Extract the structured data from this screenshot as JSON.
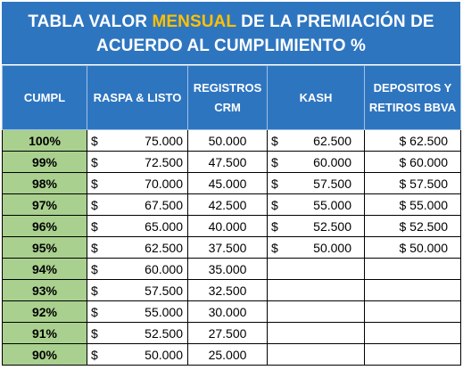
{
  "title": {
    "part1": "TABLA VALOR ",
    "highlight": "MENSUAL",
    "part2": " DE LA PREMIACIÓN DE ACUERDO AL CUMPLIMIENTO %"
  },
  "headers": {
    "cumpl": "CUMPL",
    "raspa": "RASPA & LISTO",
    "registros": "REGISTROS CRM",
    "kash": "KASH",
    "depositos": "DEPOSITOS Y RETIROS BBVA"
  },
  "currency_symbol": "$",
  "rows": [
    {
      "cumpl": "100%",
      "raspa": "75.000",
      "registros": "50.000",
      "kash": "62.500",
      "depositos": "$ 62.500"
    },
    {
      "cumpl": "99%",
      "raspa": "72.500",
      "registros": "47.500",
      "kash": "60.000",
      "depositos": "$ 60.000"
    },
    {
      "cumpl": "98%",
      "raspa": "70.000",
      "registros": "45.000",
      "kash": "57.500",
      "depositos": "$ 57.500"
    },
    {
      "cumpl": "97%",
      "raspa": "67.500",
      "registros": "42.500",
      "kash": "55.000",
      "depositos": "$ 55.000"
    },
    {
      "cumpl": "96%",
      "raspa": "65.000",
      "registros": "40.000",
      "kash": "52.500",
      "depositos": "$ 52.500"
    },
    {
      "cumpl": "95%",
      "raspa": "62.500",
      "registros": "37.500",
      "kash": "50.000",
      "depositos": "$ 50.000"
    },
    {
      "cumpl": "94%",
      "raspa": "60.000",
      "registros": "35.000",
      "kash": "",
      "depositos": ""
    },
    {
      "cumpl": "93%",
      "raspa": "57.500",
      "registros": "32.500",
      "kash": "",
      "depositos": ""
    },
    {
      "cumpl": "92%",
      "raspa": "55.000",
      "registros": "30.000",
      "kash": "",
      "depositos": ""
    },
    {
      "cumpl": "91%",
      "raspa": "52.500",
      "registros": "27.500",
      "kash": "",
      "depositos": ""
    },
    {
      "cumpl": "90%",
      "raspa": "50.000",
      "registros": "25.000",
      "kash": "",
      "depositos": ""
    }
  ],
  "colors": {
    "header_bg": "#2e75c0",
    "highlight": "#ffc000",
    "cumpl_bg": "#a9d08e"
  }
}
